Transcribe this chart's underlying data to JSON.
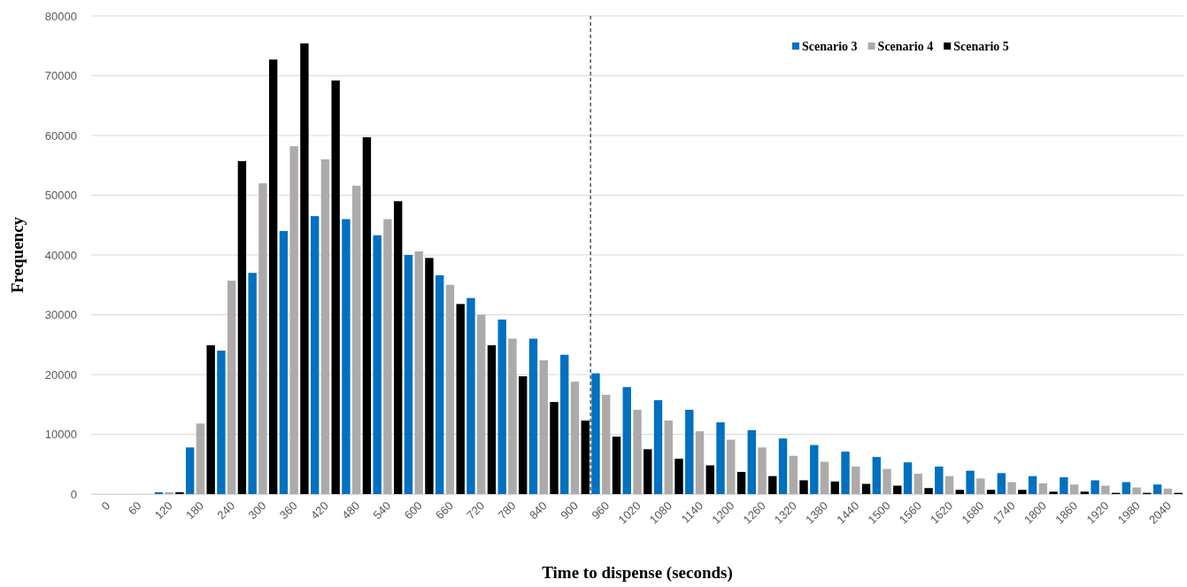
{
  "chart_data": {
    "type": "bar",
    "xlabel": "Time to dispense (seconds)",
    "ylabel": "Frequency",
    "x": [
      0,
      60,
      120,
      180,
      240,
      300,
      360,
      420,
      480,
      540,
      600,
      660,
      720,
      780,
      840,
      900,
      960,
      1020,
      1080,
      1140,
      1200,
      1260,
      1320,
      1380,
      1440,
      1500,
      1560,
      1620,
      1680,
      1740,
      1800,
      1860,
      1920,
      1980,
      2040
    ],
    "xlim": [
      -30,
      2070
    ],
    "xticks": [
      0,
      60,
      120,
      180,
      240,
      300,
      360,
      420,
      480,
      540,
      600,
      660,
      720,
      780,
      840,
      900,
      960,
      1020,
      1080,
      1140,
      1200,
      1260,
      1320,
      1380,
      1440,
      1500,
      1560,
      1620,
      1680,
      1740,
      1800,
      1860,
      1920,
      1980,
      2040
    ],
    "ylim": [
      0,
      80000
    ],
    "yticks": [
      0,
      10000,
      20000,
      30000,
      40000,
      50000,
      60000,
      70000,
      80000
    ],
    "grid": "y",
    "legend": "top right",
    "ref_lines": [
      {
        "axis": "x",
        "value": 930,
        "line_style": "dashed",
        "color": "#000000"
      }
    ],
    "series": [
      {
        "name": "Scenario 3",
        "color": "#0070c0",
        "values": [
          0,
          0,
          300,
          7800,
          24000,
          37000,
          44000,
          46500,
          46000,
          43300,
          40000,
          36600,
          32800,
          29200,
          26000,
          23300,
          20200,
          17900,
          15700,
          14100,
          12000,
          10700,
          9300,
          8200,
          7100,
          6200,
          5300,
          4600,
          3900,
          3500,
          3000,
          2800,
          2300,
          2000,
          1600
        ]
      },
      {
        "name": "Scenario 4",
        "color": "#aeaaaa",
        "values": [
          0,
          0,
          300,
          11800,
          35700,
          52000,
          58200,
          56000,
          51600,
          46000,
          40600,
          35000,
          30000,
          26000,
          22400,
          18800,
          16600,
          14100,
          12300,
          10500,
          9100,
          7800,
          6400,
          5400,
          4600,
          4200,
          3400,
          3000,
          2600,
          2000,
          1800,
          1600,
          1400,
          1100,
          900
        ]
      },
      {
        "name": "Scenario 5",
        "color": "#000000",
        "values": [
          0,
          0,
          300,
          24900,
          55700,
          72700,
          75400,
          69200,
          59700,
          49000,
          39500,
          31800,
          24900,
          19700,
          15400,
          12300,
          9600,
          7500,
          5900,
          4800,
          3700,
          3000,
          2300,
          2100,
          1700,
          1400,
          1000,
          700,
          700,
          700,
          400,
          400,
          200,
          200,
          200
        ]
      }
    ]
  }
}
